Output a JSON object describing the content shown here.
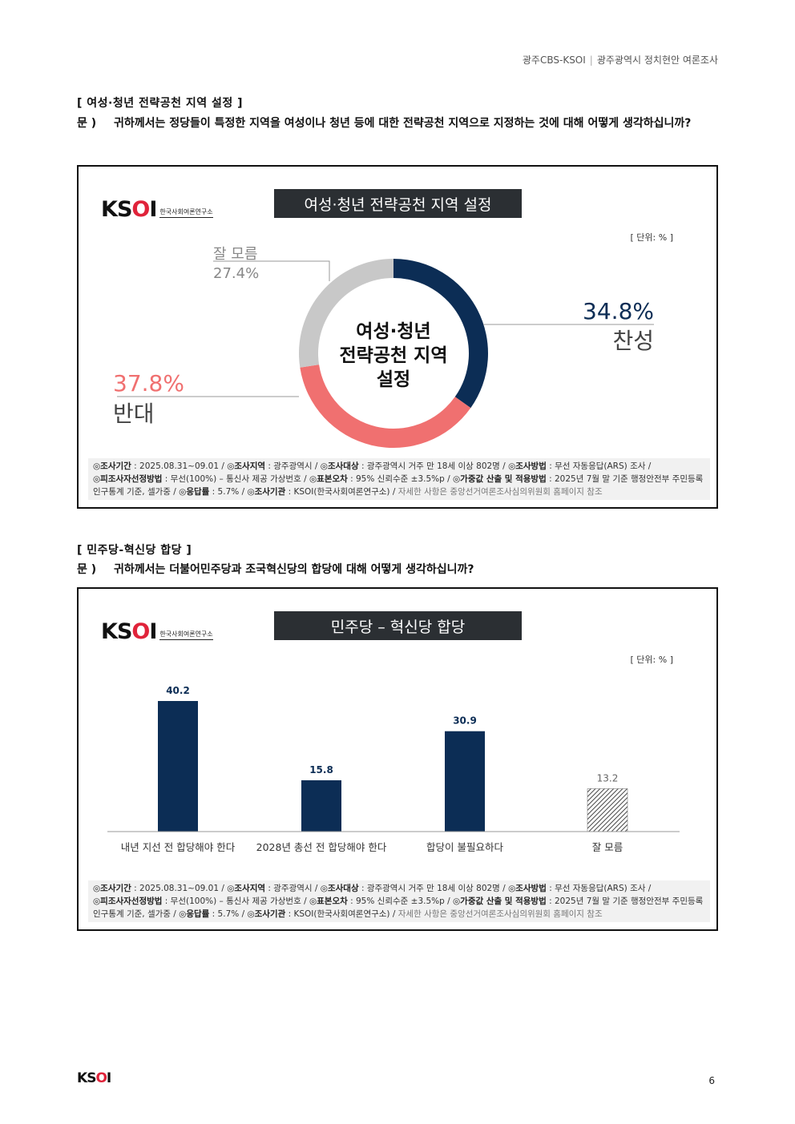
{
  "header": {
    "left": "광주CBS-KSOI",
    "right": "광주광역시 정치현안 여론조사"
  },
  "logo": {
    "mark_k": "K",
    "mark_s": "S",
    "mark_o": "O",
    "mark_i": "I",
    "sub": "한국사회여론연구소"
  },
  "section1": {
    "title": "[ 여성·청년 전략공천 지역 설정 ]",
    "q_label": "문 )",
    "question": "귀하께서는 정당들이 특정한 지역을 여성이나 청년 등에 대한 전략공천 지역으로 지정하는 것에 대해 어떻게 생각하십니까?",
    "chart_title": "여성·청년 전략공천 지역 설정",
    "unit": "[ 단위: % ]",
    "center_line1": "여성·청년",
    "center_line2": "전략공천 지역",
    "center_line3": "설정"
  },
  "section2": {
    "title": "[ 민주당-혁신당 합당 ]",
    "q_label": "문 )",
    "question": "귀하께서는 더불어민주당과 조국혁신당의 합당에 대해 어떻게 생각하십니까?",
    "chart_title": "민주당 – 혁신당 합당",
    "unit": "[ 단위: % ]"
  },
  "footnote": {
    "period_label": "◎조사기간",
    "period": "2025.08.31~09.01",
    "region_label": "◎조사지역",
    "region": "광주광역시",
    "target_label": "◎조사대상",
    "target": "광주광역시 거주 만 18세 이상 802명",
    "method_label": "◎조사방법",
    "method": "무선 자동응답(ARS) 조사",
    "sampling_label": "◎피조사자선정방법",
    "sampling": "무선(100%) – 통신사 제공 가상번호",
    "error_label": "◎표본오차",
    "error": "95% 신뢰수준 ±3.5%p",
    "weight_label": "◎가중값 산출 및 적용방법",
    "weight": "2025년 7월 말 기준 행정안전부 주민등록 인구통계 기준, 셀가중",
    "response_label": "◎응답률",
    "response": "5.7%",
    "org_label": "◎조사기관",
    "org": "KSOI(한국사회여론연구소)",
    "note": "자세한 사항은 중앙선거여론조사심의위원회 홈페이지 참조"
  },
  "page_number": "6",
  "colors": {
    "navy": "#0c2d55",
    "red": "#f07070",
    "gray": "#c8c8c8",
    "title_bg": "#2b2f33"
  },
  "chart_data": [
    {
      "type": "pie",
      "title": "여성·청년 전략공천 지역 설정",
      "categories": [
        "찬성",
        "반대",
        "잘 모름"
      ],
      "values": [
        34.8,
        37.8,
        27.4
      ],
      "labels": [
        "34.8%",
        "37.8%",
        "27.4%"
      ],
      "colors": [
        "#0c2d55",
        "#f07070",
        "#c8c8c8"
      ]
    },
    {
      "type": "bar",
      "title": "민주당 – 혁신당 합당",
      "categories": [
        "내년 지선 전 합당해야 한다",
        "2028년 총선 전 합당해야 한다",
        "합당이 불필요하다",
        "잘 모름"
      ],
      "values": [
        40.2,
        15.8,
        30.9,
        13.2
      ],
      "labels": [
        "40.2",
        "15.8",
        "30.9",
        "13.2"
      ],
      "ylim": [
        0,
        50
      ]
    }
  ]
}
